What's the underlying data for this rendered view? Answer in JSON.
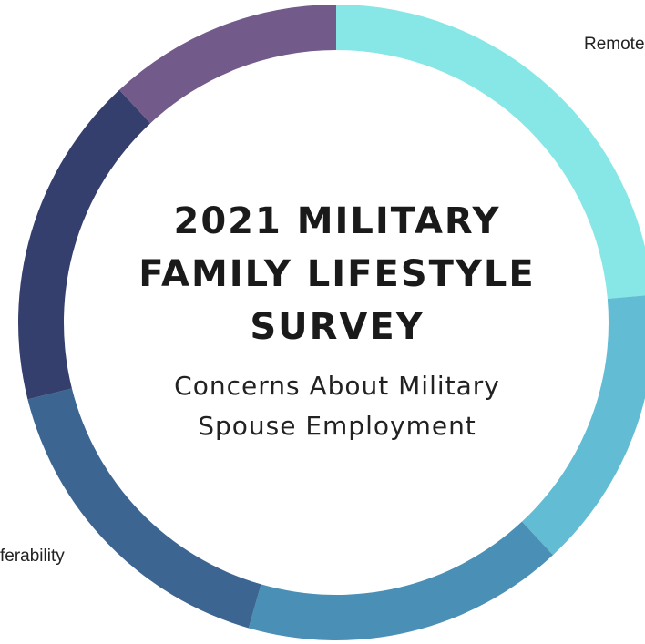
{
  "chart_data": {
    "type": "pie",
    "title": [
      "2021 MILITARY",
      "FAMILY LIFESTYLE",
      "SURVEY"
    ],
    "subtitle": [
      "Concerns About Military",
      "Spouse Employment"
    ],
    "segments": [
      {
        "label": "Remote",
        "start_deg": 0,
        "end_deg": 85,
        "color": "#86e7e6"
      },
      {
        "label": "",
        "start_deg": 85,
        "end_deg": 137,
        "color": "#62bcd3"
      },
      {
        "label": "",
        "start_deg": 137,
        "end_deg": 196,
        "color": "#4a8fb5"
      },
      {
        "label": "ferability",
        "start_deg": 196,
        "end_deg": 256,
        "color": "#3c6592"
      },
      {
        "label": "",
        "start_deg": 256,
        "end_deg": 317,
        "color": "#343f6d"
      },
      {
        "label": "",
        "start_deg": 317,
        "end_deg": 360,
        "color": "#725a8a"
      }
    ],
    "visible_labels": {
      "top_right": "Remote",
      "bottom_left": "ferability"
    }
  }
}
